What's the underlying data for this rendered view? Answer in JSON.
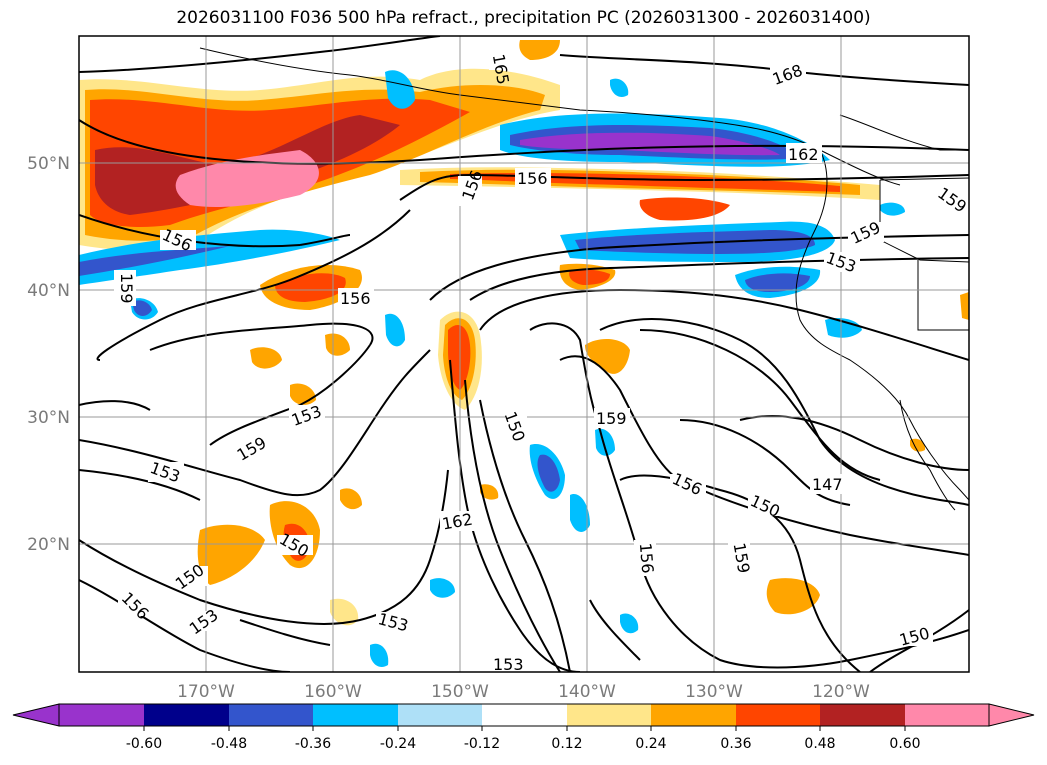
{
  "title": "2026031100 F036 500 hPa refract., precipitation PC (2026031300 - 2026031400)",
  "map": {
    "lat_labels": [
      "50°N",
      "40°N",
      "30°N",
      "20°N"
    ],
    "lon_labels": [
      "170°W",
      "160°W",
      "150°W",
      "140°W",
      "130°W",
      "120°W"
    ],
    "contour_labels": [
      "165",
      "168",
      "162",
      "156",
      "156",
      "159",
      "159",
      "153",
      "156",
      "156",
      "159",
      "150",
      "159",
      "156",
      "150",
      "153",
      "147",
      "162",
      "150",
      "153",
      "159",
      "150",
      "156",
      "153",
      "153",
      "150",
      "153",
      "159",
      "156"
    ]
  },
  "colorbar": {
    "ticks": [
      "-0.60",
      "-0.48",
      "-0.36",
      "-0.24",
      "-0.12",
      "0.12",
      "0.24",
      "0.36",
      "0.48",
      "0.60"
    ],
    "colors": [
      "#9933cc",
      "#00008b",
      "#3355cc",
      "#00bfff",
      "#aee0f7",
      "#ffffff",
      "#ffe68a",
      "#ffa500",
      "#ff4500",
      "#b22222",
      "#ff88aa"
    ]
  }
}
